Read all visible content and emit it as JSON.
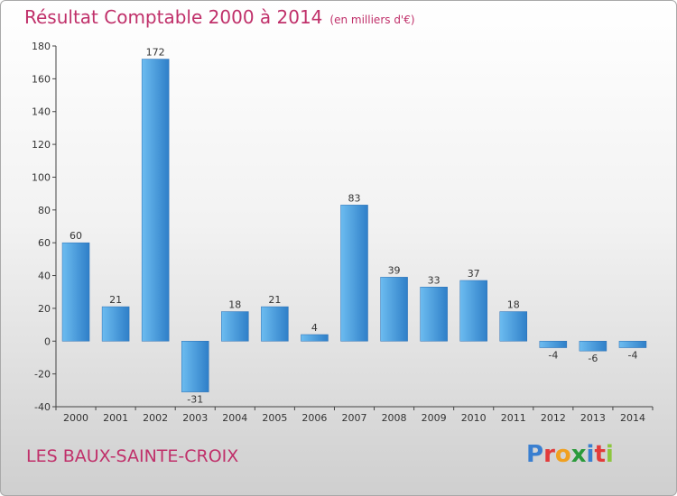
{
  "chart_data": {
    "type": "bar",
    "title": "Résultat Comptable 2000 à 2014",
    "unit": "(en milliers d'€)",
    "categories": [
      "2000",
      "2001",
      "2002",
      "2003",
      "2004",
      "2005",
      "2006",
      "2007",
      "2008",
      "2009",
      "2010",
      "2011",
      "2012",
      "2013",
      "2014"
    ],
    "values": [
      60,
      21,
      172,
      -31,
      18,
      21,
      4,
      83,
      39,
      33,
      37,
      18,
      -4,
      -6,
      -4
    ],
    "ylim": [
      -40,
      180
    ],
    "yticks": [
      -40,
      -20,
      0,
      20,
      40,
      60,
      80,
      100,
      120,
      140,
      160,
      180
    ],
    "xlabel": "",
    "ylabel": "",
    "grid": false,
    "bar_color": "#3d8fd6",
    "bar_color_light": "#5aafe8",
    "bar_color_dark": "#2a6fb5"
  },
  "footer": {
    "commune": "LES BAUX-SAINTE-CROIX"
  },
  "brand": {
    "name": "Proxiti",
    "letters": [
      {
        "char": "P",
        "color": "#3a7fd0"
      },
      {
        "char": "r",
        "color": "#e23b3b"
      },
      {
        "char": "o",
        "color": "#f0a020"
      },
      {
        "char": "x",
        "color": "#2a9a3a"
      },
      {
        "char": "i",
        "color": "#3a7fd0"
      },
      {
        "char": "t",
        "color": "#e23b3b"
      },
      {
        "char": "i",
        "color": "#8dc63f"
      }
    ]
  },
  "colors": {
    "title": "#c0306a",
    "axis": "#555555",
    "text": "#333333"
  }
}
